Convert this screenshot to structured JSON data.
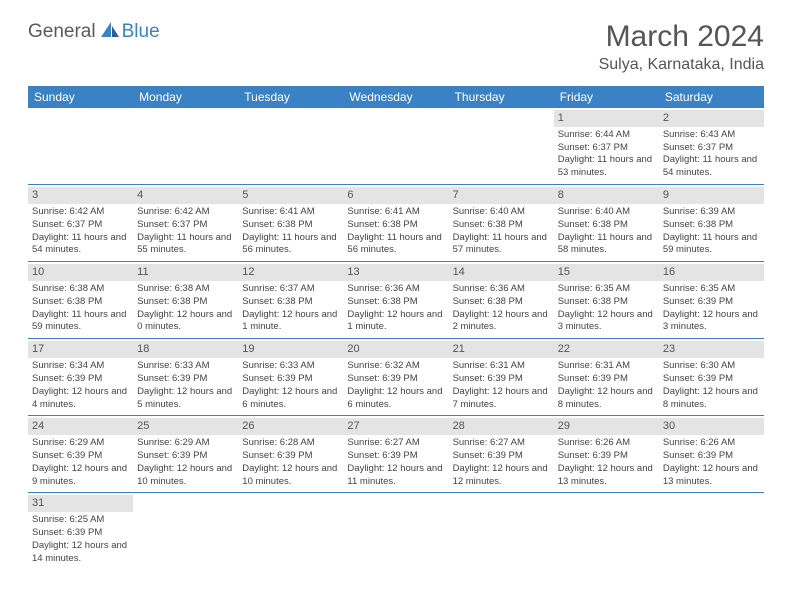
{
  "logo": {
    "general": "General",
    "blue": "Blue"
  },
  "title": "March 2024",
  "location": "Sulya, Karnataka, India",
  "colors": {
    "header_bg": "#3b82c4",
    "header_text": "#ffffff",
    "daynum_bg": "#e4e4e4",
    "text": "#444444",
    "divider": "#3b82c4"
  },
  "days_of_week": [
    "Sunday",
    "Monday",
    "Tuesday",
    "Wednesday",
    "Thursday",
    "Friday",
    "Saturday"
  ],
  "weeks": [
    [
      null,
      null,
      null,
      null,
      null,
      {
        "n": "1",
        "sr": "Sunrise: 6:44 AM",
        "ss": "Sunset: 6:37 PM",
        "dl": "Daylight: 11 hours and 53 minutes."
      },
      {
        "n": "2",
        "sr": "Sunrise: 6:43 AM",
        "ss": "Sunset: 6:37 PM",
        "dl": "Daylight: 11 hours and 54 minutes."
      }
    ],
    [
      {
        "n": "3",
        "sr": "Sunrise: 6:42 AM",
        "ss": "Sunset: 6:37 PM",
        "dl": "Daylight: 11 hours and 54 minutes."
      },
      {
        "n": "4",
        "sr": "Sunrise: 6:42 AM",
        "ss": "Sunset: 6:37 PM",
        "dl": "Daylight: 11 hours and 55 minutes."
      },
      {
        "n": "5",
        "sr": "Sunrise: 6:41 AM",
        "ss": "Sunset: 6:38 PM",
        "dl": "Daylight: 11 hours and 56 minutes."
      },
      {
        "n": "6",
        "sr": "Sunrise: 6:41 AM",
        "ss": "Sunset: 6:38 PM",
        "dl": "Daylight: 11 hours and 56 minutes."
      },
      {
        "n": "7",
        "sr": "Sunrise: 6:40 AM",
        "ss": "Sunset: 6:38 PM",
        "dl": "Daylight: 11 hours and 57 minutes."
      },
      {
        "n": "8",
        "sr": "Sunrise: 6:40 AM",
        "ss": "Sunset: 6:38 PM",
        "dl": "Daylight: 11 hours and 58 minutes."
      },
      {
        "n": "9",
        "sr": "Sunrise: 6:39 AM",
        "ss": "Sunset: 6:38 PM",
        "dl": "Daylight: 11 hours and 59 minutes."
      }
    ],
    [
      {
        "n": "10",
        "sr": "Sunrise: 6:38 AM",
        "ss": "Sunset: 6:38 PM",
        "dl": "Daylight: 11 hours and 59 minutes."
      },
      {
        "n": "11",
        "sr": "Sunrise: 6:38 AM",
        "ss": "Sunset: 6:38 PM",
        "dl": "Daylight: 12 hours and 0 minutes."
      },
      {
        "n": "12",
        "sr": "Sunrise: 6:37 AM",
        "ss": "Sunset: 6:38 PM",
        "dl": "Daylight: 12 hours and 1 minute."
      },
      {
        "n": "13",
        "sr": "Sunrise: 6:36 AM",
        "ss": "Sunset: 6:38 PM",
        "dl": "Daylight: 12 hours and 1 minute."
      },
      {
        "n": "14",
        "sr": "Sunrise: 6:36 AM",
        "ss": "Sunset: 6:38 PM",
        "dl": "Daylight: 12 hours and 2 minutes."
      },
      {
        "n": "15",
        "sr": "Sunrise: 6:35 AM",
        "ss": "Sunset: 6:38 PM",
        "dl": "Daylight: 12 hours and 3 minutes."
      },
      {
        "n": "16",
        "sr": "Sunrise: 6:35 AM",
        "ss": "Sunset: 6:39 PM",
        "dl": "Daylight: 12 hours and 3 minutes."
      }
    ],
    [
      {
        "n": "17",
        "sr": "Sunrise: 6:34 AM",
        "ss": "Sunset: 6:39 PM",
        "dl": "Daylight: 12 hours and 4 minutes."
      },
      {
        "n": "18",
        "sr": "Sunrise: 6:33 AM",
        "ss": "Sunset: 6:39 PM",
        "dl": "Daylight: 12 hours and 5 minutes."
      },
      {
        "n": "19",
        "sr": "Sunrise: 6:33 AM",
        "ss": "Sunset: 6:39 PM",
        "dl": "Daylight: 12 hours and 6 minutes."
      },
      {
        "n": "20",
        "sr": "Sunrise: 6:32 AM",
        "ss": "Sunset: 6:39 PM",
        "dl": "Daylight: 12 hours and 6 minutes."
      },
      {
        "n": "21",
        "sr": "Sunrise: 6:31 AM",
        "ss": "Sunset: 6:39 PM",
        "dl": "Daylight: 12 hours and 7 minutes."
      },
      {
        "n": "22",
        "sr": "Sunrise: 6:31 AM",
        "ss": "Sunset: 6:39 PM",
        "dl": "Daylight: 12 hours and 8 minutes."
      },
      {
        "n": "23",
        "sr": "Sunrise: 6:30 AM",
        "ss": "Sunset: 6:39 PM",
        "dl": "Daylight: 12 hours and 8 minutes."
      }
    ],
    [
      {
        "n": "24",
        "sr": "Sunrise: 6:29 AM",
        "ss": "Sunset: 6:39 PM",
        "dl": "Daylight: 12 hours and 9 minutes."
      },
      {
        "n": "25",
        "sr": "Sunrise: 6:29 AM",
        "ss": "Sunset: 6:39 PM",
        "dl": "Daylight: 12 hours and 10 minutes."
      },
      {
        "n": "26",
        "sr": "Sunrise: 6:28 AM",
        "ss": "Sunset: 6:39 PM",
        "dl": "Daylight: 12 hours and 10 minutes."
      },
      {
        "n": "27",
        "sr": "Sunrise: 6:27 AM",
        "ss": "Sunset: 6:39 PM",
        "dl": "Daylight: 12 hours and 11 minutes."
      },
      {
        "n": "28",
        "sr": "Sunrise: 6:27 AM",
        "ss": "Sunset: 6:39 PM",
        "dl": "Daylight: 12 hours and 12 minutes."
      },
      {
        "n": "29",
        "sr": "Sunrise: 6:26 AM",
        "ss": "Sunset: 6:39 PM",
        "dl": "Daylight: 12 hours and 13 minutes."
      },
      {
        "n": "30",
        "sr": "Sunrise: 6:26 AM",
        "ss": "Sunset: 6:39 PM",
        "dl": "Daylight: 12 hours and 13 minutes."
      }
    ],
    [
      {
        "n": "31",
        "sr": "Sunrise: 6:25 AM",
        "ss": "Sunset: 6:39 PM",
        "dl": "Daylight: 12 hours and 14 minutes."
      },
      null,
      null,
      null,
      null,
      null,
      null
    ]
  ]
}
